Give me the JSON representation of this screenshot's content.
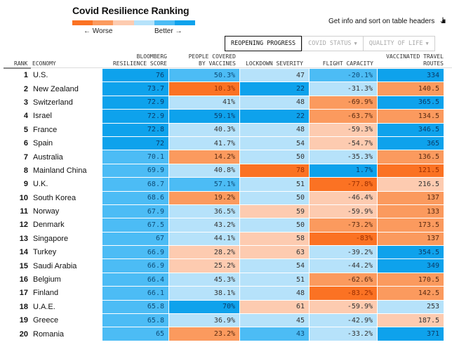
{
  "title": "Covid Resilience Ranking",
  "legend": {
    "worse_label": "← Worse",
    "better_label": "Better →",
    "colors": [
      "#fb7223",
      "#fb9a5e",
      "#fdcbb0",
      "#b6e2fa",
      "#4cbcf5",
      "#0ea2ec"
    ]
  },
  "hint": "Get info and sort on table headers",
  "tabs": [
    {
      "label": "REOPENING PROGRESS",
      "active": true
    },
    {
      "label": "COVID STATUS",
      "caret": "▼"
    },
    {
      "label": "QUALITY OF LIFE",
      "caret": "▼"
    }
  ],
  "headers": {
    "rank": "RANK",
    "economy": "ECONOMY",
    "score_1": "BLOOMBERG",
    "score_2": "RESILIENCE SCORE",
    "vacc_1": "PEOPLE COVERED",
    "vacc_2": "BY VACCINES",
    "lockdown": "LOCKDOWN SEVERITY",
    "flight": "FLIGHT CAPACITY",
    "routes_1": "VACCINATED TRAVEL",
    "routes_2": "ROUTES"
  },
  "rows": [
    {
      "rank": "1",
      "economy": "U.S.",
      "score": "76",
      "score_lvl": 5,
      "vacc": "50.3%",
      "vacc_lvl": 4,
      "lockdown": "47",
      "lockdown_lvl": 3,
      "flight": "-20.1%",
      "flight_lvl": 4,
      "routes": "334",
      "routes_lvl": 5
    },
    {
      "rank": "2",
      "economy": "New Zealand",
      "score": "73.7",
      "score_lvl": 5,
      "vacc": "10.3%",
      "vacc_lvl": 0,
      "lockdown": "22",
      "lockdown_lvl": 5,
      "flight": "-31.3%",
      "flight_lvl": 3,
      "routes": "140.5",
      "routes_lvl": 1
    },
    {
      "rank": "3",
      "economy": "Switzerland",
      "score": "72.9",
      "score_lvl": 5,
      "vacc": "41%",
      "vacc_lvl": 3,
      "lockdown": "48",
      "lockdown_lvl": 3,
      "flight": "-69.9%",
      "flight_lvl": 1,
      "routes": "365.5",
      "routes_lvl": 5
    },
    {
      "rank": "4",
      "economy": "Israel",
      "score": "72.9",
      "score_lvl": 5,
      "vacc": "59.1%",
      "vacc_lvl": 5,
      "lockdown": "22",
      "lockdown_lvl": 5,
      "flight": "-63.7%",
      "flight_lvl": 1,
      "routes": "134.5",
      "routes_lvl": 1
    },
    {
      "rank": "5",
      "economy": "France",
      "score": "72.8",
      "score_lvl": 5,
      "vacc": "40.3%",
      "vacc_lvl": 3,
      "lockdown": "48",
      "lockdown_lvl": 3,
      "flight": "-59.3%",
      "flight_lvl": 2,
      "routes": "346.5",
      "routes_lvl": 5
    },
    {
      "rank": "6",
      "economy": "Spain",
      "score": "72",
      "score_lvl": 5,
      "vacc": "41.7%",
      "vacc_lvl": 3,
      "lockdown": "54",
      "lockdown_lvl": 3,
      "flight": "-54.7%",
      "flight_lvl": 2,
      "routes": "365",
      "routes_lvl": 5
    },
    {
      "rank": "7",
      "economy": "Australia",
      "score": "70.1",
      "score_lvl": 4,
      "vacc": "14.2%",
      "vacc_lvl": 1,
      "lockdown": "50",
      "lockdown_lvl": 3,
      "flight": "-35.3%",
      "flight_lvl": 3,
      "routes": "136.5",
      "routes_lvl": 1
    },
    {
      "rank": "8",
      "economy": "Mainland China",
      "score": "69.9",
      "score_lvl": 4,
      "vacc": "40.8%",
      "vacc_lvl": 3,
      "lockdown": "78",
      "lockdown_lvl": 0,
      "flight": "1.7%",
      "flight_lvl": 5,
      "routes": "121.5",
      "routes_lvl": 0
    },
    {
      "rank": "9",
      "economy": "U.K.",
      "score": "68.7",
      "score_lvl": 4,
      "vacc": "57.1%",
      "vacc_lvl": 4,
      "lockdown": "51",
      "lockdown_lvl": 3,
      "flight": "-77.8%",
      "flight_lvl": 0,
      "routes": "216.5",
      "routes_lvl": 2
    },
    {
      "rank": "10",
      "economy": "South Korea",
      "score": "68.6",
      "score_lvl": 4,
      "vacc": "19.2%",
      "vacc_lvl": 1,
      "lockdown": "50",
      "lockdown_lvl": 3,
      "flight": "-46.4%",
      "flight_lvl": 2,
      "routes": "137",
      "routes_lvl": 1
    },
    {
      "rank": "11",
      "economy": "Norway",
      "score": "67.9",
      "score_lvl": 4,
      "vacc": "36.5%",
      "vacc_lvl": 3,
      "lockdown": "59",
      "lockdown_lvl": 2,
      "flight": "-59.9%",
      "flight_lvl": 2,
      "routes": "133",
      "routes_lvl": 1
    },
    {
      "rank": "12",
      "economy": "Denmark",
      "score": "67.5",
      "score_lvl": 4,
      "vacc": "43.2%",
      "vacc_lvl": 3,
      "lockdown": "50",
      "lockdown_lvl": 3,
      "flight": "-73.2%",
      "flight_lvl": 1,
      "routes": "173.5",
      "routes_lvl": 1
    },
    {
      "rank": "13",
      "economy": "Singapore",
      "score": "67",
      "score_lvl": 4,
      "vacc": "44.1%",
      "vacc_lvl": 3,
      "lockdown": "58",
      "lockdown_lvl": 2,
      "flight": "-83%",
      "flight_lvl": 0,
      "routes": "137",
      "routes_lvl": 1
    },
    {
      "rank": "14",
      "economy": "Turkey",
      "score": "66.9",
      "score_lvl": 4,
      "vacc": "28.2%",
      "vacc_lvl": 2,
      "lockdown": "63",
      "lockdown_lvl": 2,
      "flight": "-39.2%",
      "flight_lvl": 3,
      "routes": "354.5",
      "routes_lvl": 5
    },
    {
      "rank": "15",
      "economy": "Saudi Arabia",
      "score": "66.9",
      "score_lvl": 4,
      "vacc": "25.2%",
      "vacc_lvl": 2,
      "lockdown": "54",
      "lockdown_lvl": 3,
      "flight": "-44.2%",
      "flight_lvl": 3,
      "routes": "349",
      "routes_lvl": 5
    },
    {
      "rank": "16",
      "economy": "Belgium",
      "score": "66.4",
      "score_lvl": 4,
      "vacc": "45.3%",
      "vacc_lvl": 3,
      "lockdown": "51",
      "lockdown_lvl": 3,
      "flight": "-62.6%",
      "flight_lvl": 1,
      "routes": "170.5",
      "routes_lvl": 1
    },
    {
      "rank": "17",
      "economy": "Finland",
      "score": "66.1",
      "score_lvl": 4,
      "vacc": "38.1%",
      "vacc_lvl": 3,
      "lockdown": "48",
      "lockdown_lvl": 3,
      "flight": "-83.2%",
      "flight_lvl": 0,
      "routes": "142.5",
      "routes_lvl": 1
    },
    {
      "rank": "18",
      "economy": "U.A.E.",
      "score": "65.8",
      "score_lvl": 4,
      "vacc": "70%",
      "vacc_lvl": 5,
      "lockdown": "61",
      "lockdown_lvl": 2,
      "flight": "-59.9%",
      "flight_lvl": 2,
      "routes": "253",
      "routes_lvl": 3
    },
    {
      "rank": "19",
      "economy": "Greece",
      "score": "65.8",
      "score_lvl": 4,
      "vacc": "36.9%",
      "vacc_lvl": 3,
      "lockdown": "45",
      "lockdown_lvl": 3,
      "flight": "-42.9%",
      "flight_lvl": 3,
      "routes": "187.5",
      "routes_lvl": 2
    },
    {
      "rank": "20",
      "economy": "Romania",
      "score": "65",
      "score_lvl": 4,
      "vacc": "23.2%",
      "vacc_lvl": 1,
      "lockdown": "43",
      "lockdown_lvl": 4,
      "flight": "-33.2%",
      "flight_lvl": 3,
      "routes": "371",
      "routes_lvl": 5
    }
  ]
}
